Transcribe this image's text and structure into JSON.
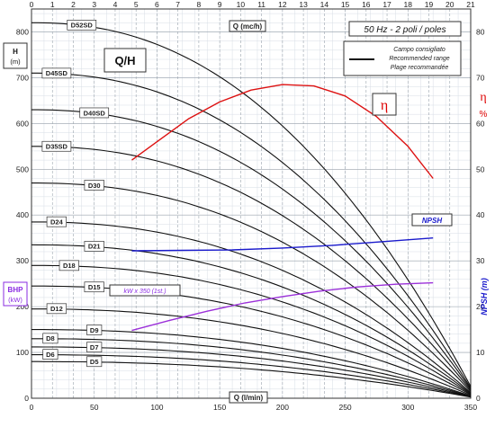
{
  "chart_data": {
    "type": "line",
    "title": "Q/H",
    "frequency_label": "50 Hz - 2 poli / poles",
    "legend": {
      "placement": "top-right",
      "lines": [
        "Campo consigliato",
        "Recommended range",
        "Plage recommandée"
      ]
    },
    "x_bottom": {
      "label": "Q (l/min)",
      "range": [
        0,
        350
      ],
      "ticks": [
        0,
        50,
        100,
        150,
        200,
        250,
        300,
        350
      ]
    },
    "x_top": {
      "label": "Q (mc/h)",
      "range": [
        0,
        21
      ],
      "ticks": [
        0,
        1,
        2,
        3,
        4,
        5,
        6,
        7,
        8,
        9,
        10,
        11,
        12,
        13,
        14,
        15,
        16,
        17,
        18,
        19,
        20,
        21
      ]
    },
    "y_left": {
      "label_lines": [
        "H",
        "(m)"
      ],
      "range": [
        0,
        850
      ],
      "ticks": [
        0,
        100,
        200,
        300,
        400,
        500,
        600,
        700,
        800
      ]
    },
    "y_bhp_label_lines": [
      "BHP",
      "(kW)"
    ],
    "y_eta": {
      "label_lines": [
        "η",
        "%"
      ],
      "range": [
        0,
        85
      ],
      "ticks": [
        0,
        10,
        20,
        30,
        40,
        50,
        60,
        70,
        80
      ]
    },
    "y_npsh_label": "NPSH (m)",
    "head_curves": [
      {
        "name": "D52SD",
        "h0": 820,
        "qmax": 355
      },
      {
        "name": "D45SD",
        "h0": 710,
        "qmax": 355
      },
      {
        "name": "D40SD",
        "h0": 630,
        "qmax": 355
      },
      {
        "name": "D35SD",
        "h0": 550,
        "qmax": 355
      },
      {
        "name": "D30",
        "h0": 470,
        "qmax": 355
      },
      {
        "name": "D24",
        "h0": 385,
        "qmax": 355
      },
      {
        "name": "D21",
        "h0": 335,
        "qmax": 355
      },
      {
        "name": "D18",
        "h0": 290,
        "qmax": 355
      },
      {
        "name": "D15",
        "h0": 245,
        "qmax": 355
      },
      {
        "name": "D12",
        "h0": 195,
        "qmax": 355
      },
      {
        "name": "D9",
        "h0": 150,
        "qmax": 355
      },
      {
        "name": "D8",
        "h0": 130,
        "qmax": 355
      },
      {
        "name": "D7",
        "h0": 112,
        "qmax": 355
      },
      {
        "name": "D6",
        "h0": 95,
        "qmax": 355
      },
      {
        "name": "D5",
        "h0": 80,
        "qmax": 355
      }
    ],
    "efficiency_curve": {
      "name": "η",
      "q": [
        80,
        100,
        125,
        150,
        175,
        200,
        225,
        250,
        275,
        300,
        320
      ],
      "eta": [
        52,
        56,
        61,
        64.7,
        67.3,
        68.5,
        68.2,
        66,
        61.5,
        55,
        48
      ]
    },
    "npsh_curve": {
      "name": "NPSH",
      "q": [
        80,
        120,
        160,
        200,
        240,
        280,
        320
      ],
      "h": [
        322,
        323,
        324,
        328,
        334,
        342,
        350
      ]
    },
    "bhp_curve": {
      "name": "kW x 350 (1st.)",
      "q": [
        80,
        110,
        140,
        170,
        200,
        230,
        260,
        290,
        320
      ],
      "h": [
        148,
        170,
        190,
        208,
        222,
        234,
        243,
        249,
        252
      ]
    }
  }
}
